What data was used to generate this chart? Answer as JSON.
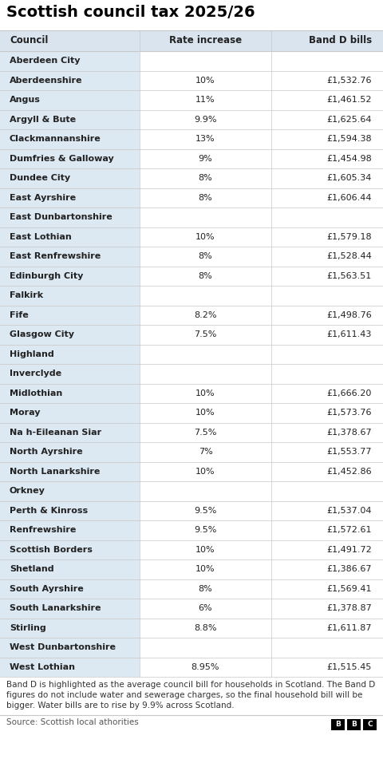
{
  "title": "Scottish council tax 2025/26",
  "col_headers": [
    "Council",
    "Rate increase",
    "Band D bills"
  ],
  "rows": [
    {
      "council": "Aberdeen City",
      "rate": "",
      "band_d": ""
    },
    {
      "council": "Aberdeenshire",
      "rate": "10%",
      "band_d": "£1,532.76"
    },
    {
      "council": "Angus",
      "rate": "11%",
      "band_d": "£1,461.52"
    },
    {
      "council": "Argyll & Bute",
      "rate": "9.9%",
      "band_d": "£1,625.64"
    },
    {
      "council": "Clackmannanshire",
      "rate": "13%",
      "band_d": "£1,594.38"
    },
    {
      "council": "Dumfries & Galloway",
      "rate": "9%",
      "band_d": "£1,454.98"
    },
    {
      "council": "Dundee City",
      "rate": "8%",
      "band_d": "£1,605.34"
    },
    {
      "council": "East Ayrshire",
      "rate": "8%",
      "band_d": "£1,606.44"
    },
    {
      "council": "East Dunbartonshire",
      "rate": "",
      "band_d": ""
    },
    {
      "council": "East Lothian",
      "rate": "10%",
      "band_d": "£1,579.18"
    },
    {
      "council": "East Renfrewshire",
      "rate": "8%",
      "band_d": "£1,528.44"
    },
    {
      "council": "Edinburgh City",
      "rate": "8%",
      "band_d": "£1,563.51"
    },
    {
      "council": "Falkirk",
      "rate": "",
      "band_d": ""
    },
    {
      "council": "Fife",
      "rate": "8.2%",
      "band_d": "£1,498.76"
    },
    {
      "council": "Glasgow City",
      "rate": "7.5%",
      "band_d": "£1,611.43"
    },
    {
      "council": "Highland",
      "rate": "",
      "band_d": ""
    },
    {
      "council": "Inverclyde",
      "rate": "",
      "band_d": ""
    },
    {
      "council": "Midlothian",
      "rate": "10%",
      "band_d": "£1,666.20"
    },
    {
      "council": "Moray",
      "rate": "10%",
      "band_d": "£1,573.76"
    },
    {
      "council": "Na h-Eileanan Siar",
      "rate": "7.5%",
      "band_d": "£1,378.67"
    },
    {
      "council": "North Ayrshire",
      "rate": "7%",
      "band_d": "£1,553.77"
    },
    {
      "council": "North Lanarkshire",
      "rate": "10%",
      "band_d": "£1,452.86"
    },
    {
      "council": "Orkney",
      "rate": "",
      "band_d": ""
    },
    {
      "council": "Perth & Kinross",
      "rate": "9.5%",
      "band_d": "£1,537.04"
    },
    {
      "council": "Renfrewshire",
      "rate": "9.5%",
      "band_d": "£1,572.61"
    },
    {
      "council": "Scottish Borders",
      "rate": "10%",
      "band_d": "£1,491.72"
    },
    {
      "council": "Shetland",
      "rate": "10%",
      "band_d": "£1,386.67"
    },
    {
      "council": "South Ayrshire",
      "rate": "8%",
      "band_d": "£1,569.41"
    },
    {
      "council": "South Lanarkshire",
      "rate": "6%",
      "band_d": "£1,378.87"
    },
    {
      "council": "Stirling",
      "rate": "8.8%",
      "band_d": "£1,611.87"
    },
    {
      "council": "West Dunbartonshire",
      "rate": "",
      "band_d": ""
    },
    {
      "council": "West Lothian",
      "rate": "8.95%",
      "band_d": "£1,515.45"
    }
  ],
  "footnote_lines": [
    "Band D is highlighted as the average council bill for households in Scotland. The Band D",
    "figures do not include water and sewerage charges, so the final household bill will be",
    "bigger. Water bills are to rise by 9.9% across Scotland."
  ],
  "source": "Source: Scottish local athorities",
  "title_color": "#000000",
  "header_bg": "#d9e4ef",
  "council_col_bg": "#dce8f2",
  "data_bg": "#ffffff",
  "separator_color": "#c8c8c8",
  "header_text_color": "#222222",
  "body_text_color": "#222222",
  "footnote_color": "#333333",
  "source_color": "#555555",
  "title_fontsize": 14,
  "header_fontsize": 8.5,
  "body_fontsize": 8.0,
  "footnote_fontsize": 7.5,
  "source_fontsize": 7.5
}
